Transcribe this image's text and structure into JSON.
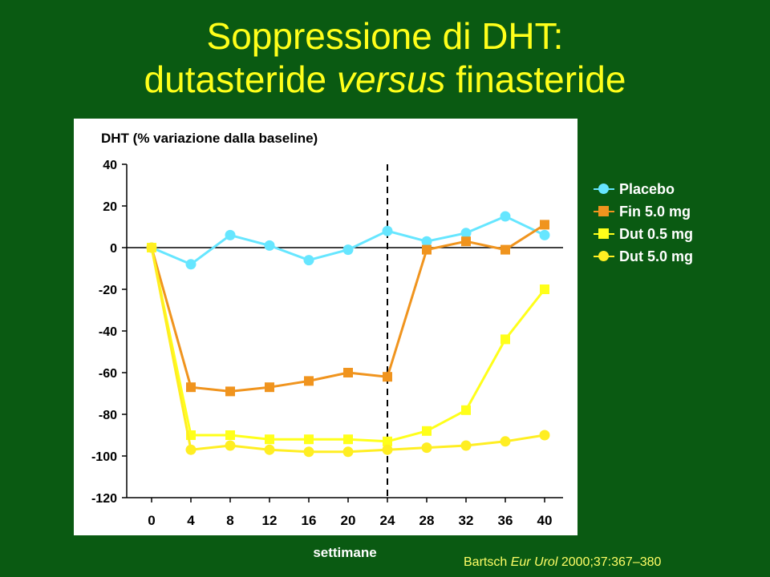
{
  "slide": {
    "title_line1": "Soppressione di DHT:",
    "title_line2_pre": "dutasteride ",
    "title_line2_italic": "versus",
    "title_line2_post": " finasteride",
    "citation_author": "Bartsch",
    "citation_journal": "Eur Urol",
    "citation_ref": "2000;37:367–380",
    "citation_dot": "."
  },
  "chart_data": {
    "type": "line",
    "ylabel": "DHT (% variazione dalla baseline)",
    "xlabel": "settimane",
    "x": [
      0,
      4,
      8,
      12,
      16,
      20,
      24,
      28,
      32,
      36,
      40
    ],
    "x_ticks": [
      "0",
      "4",
      "8",
      "12",
      "16",
      "20",
      "24",
      "28",
      "32",
      "36",
      "40"
    ],
    "ylim": [
      -120,
      40
    ],
    "y_ticks": [
      "40",
      "20",
      "0",
      "-20",
      "-40",
      "-60",
      "-80",
      "-100",
      "-120"
    ],
    "y_tick_values": [
      40,
      20,
      0,
      -20,
      -40,
      -60,
      -80,
      -100,
      -120
    ],
    "reference_line_y": 0,
    "vertical_dashed_line_x": 24,
    "legend_position": "right",
    "series": [
      {
        "name": "Placebo",
        "marker": "circle",
        "color": "#66e6ff",
        "values": [
          0,
          -8,
          6,
          1,
          -6,
          -1,
          8,
          3,
          7,
          15,
          6
        ]
      },
      {
        "name": "Fin 5.0 mg",
        "marker": "square",
        "color": "#f0941e",
        "values": [
          0,
          -67,
          -69,
          -67,
          -64,
          -60,
          -62,
          -1,
          3,
          -1,
          11
        ]
      },
      {
        "name": "Dut 0.5 mg",
        "marker": "square",
        "color": "#ffff1a",
        "values": [
          0,
          -90,
          -90,
          -92,
          -92,
          -92,
          -93,
          -88,
          -78,
          -44,
          -20
        ]
      },
      {
        "name": "Dut 5.0 mg",
        "marker": "circle",
        "color": "#ffee22",
        "values": [
          0,
          -97,
          -95,
          -97,
          -98,
          -98,
          -97,
          -96,
          -95,
          -93,
          -90
        ]
      }
    ]
  }
}
